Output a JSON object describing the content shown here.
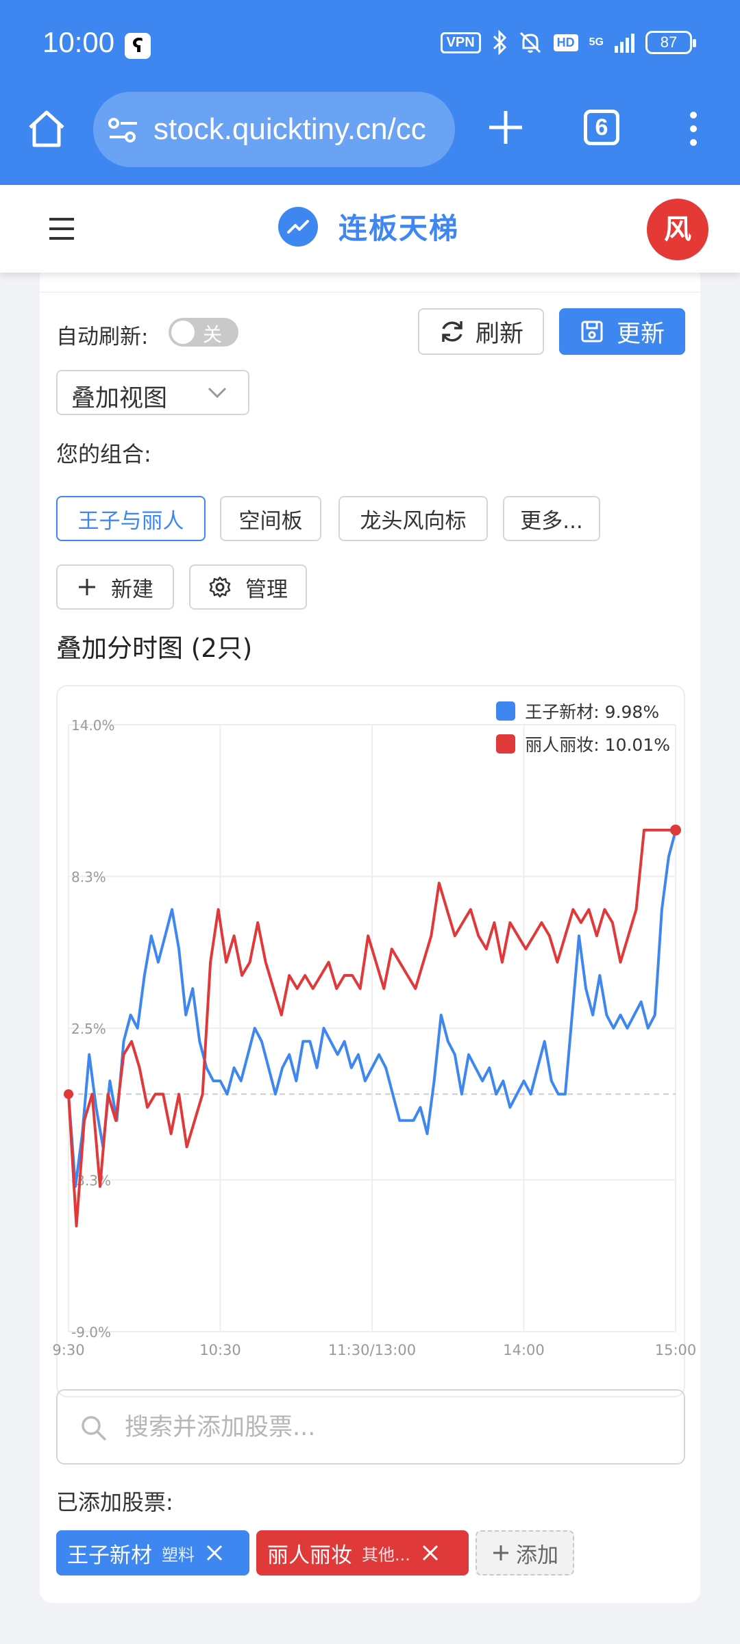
{
  "status_bar": {
    "time": "10:00",
    "app_badge": "ʕ",
    "vpn": "VPN",
    "hd": "HD",
    "network": "5G",
    "battery": "87"
  },
  "browser": {
    "url": "stock.quicktiny.cn/cc",
    "tab_count": "6"
  },
  "header": {
    "title": "连板天梯",
    "avatar_text": "风"
  },
  "controls": {
    "auto_refresh_label": "自动刷新:",
    "auto_refresh_state": "关",
    "refresh_label": "刷新",
    "update_label": "更新",
    "view_select": "叠加视图"
  },
  "portfolio": {
    "label": "您的组合:",
    "chips": [
      "王子与丽人",
      "空间板",
      "龙头风向标",
      "更多..."
    ],
    "active_index": 0,
    "new_label": "新建",
    "manage_label": "管理"
  },
  "chart_data": {
    "type": "line",
    "title": "叠加分时图 (2只)",
    "y_ticks": [
      "14.0%",
      "8.3%",
      "2.5%",
      "-3.3%",
      "-9.0%"
    ],
    "ylim": [
      -9.0,
      14.0
    ],
    "x_ticks": [
      "9:30",
      "10:30",
      "11:30/13:00",
      "14:00",
      "15:00"
    ],
    "grid": true,
    "legend_position": "top-right",
    "series": [
      {
        "name": "王子新材: 9.98%",
        "color": "#3f87f0",
        "values": [
          0.0,
          -3.5,
          -1.5,
          1.5,
          -0.5,
          -2.0,
          0.5,
          -1.0,
          2.0,
          3.0,
          2.5,
          4.5,
          6.0,
          5.0,
          6.0,
          7.0,
          5.5,
          3.0,
          4.0,
          2.0,
          1.0,
          0.5,
          0.5,
          0.0,
          1.0,
          0.5,
          1.5,
          2.5,
          2.0,
          1.0,
          0.0,
          1.0,
          1.5,
          0.5,
          2.0,
          2.0,
          1.0,
          2.5,
          2.0,
          1.5,
          2.0,
          1.0,
          1.5,
          0.5,
          1.0,
          1.5,
          1.0,
          0.0,
          -1.0,
          -1.0,
          -1.0,
          -0.5,
          -1.5,
          0.5,
          3.0,
          2.0,
          1.5,
          0.0,
          1.5,
          1.0,
          0.5,
          1.0,
          0.0,
          0.5,
          -0.5,
          0.0,
          0.5,
          0.0,
          1.0,
          2.0,
          0.5,
          0.0,
          0.0,
          3.0,
          6.0,
          4.0,
          3.0,
          4.5,
          3.0,
          2.5,
          3.0,
          2.5,
          3.0,
          3.5,
          2.5,
          3.0,
          7.0,
          9.0,
          9.98
        ]
      },
      {
        "name": "丽人丽妆: 10.01%",
        "color": "#e0393a",
        "values": [
          0.0,
          -5.0,
          -1.0,
          0.0,
          -3.5,
          0.0,
          -1.0,
          1.5,
          2.0,
          1.0,
          -0.5,
          0.0,
          0.0,
          -1.5,
          0.0,
          -2.0,
          -1.0,
          0.0,
          5.0,
          7.0,
          5.0,
          6.0,
          4.5,
          5.0,
          6.5,
          5.0,
          4.0,
          3.0,
          4.5,
          4.0,
          4.5,
          4.0,
          4.5,
          5.0,
          4.0,
          4.5,
          4.5,
          4.0,
          6.0,
          5.0,
          4.0,
          5.5,
          5.0,
          4.5,
          4.0,
          5.0,
          6.0,
          8.0,
          7.0,
          6.0,
          6.5,
          7.0,
          6.0,
          5.5,
          6.5,
          5.0,
          6.5,
          6.0,
          5.5,
          6.0,
          6.5,
          6.0,
          5.0,
          6.0,
          7.0,
          6.5,
          7.0,
          6.0,
          7.0,
          6.5,
          5.0,
          6.0,
          7.0,
          10.01,
          10.01,
          10.01,
          10.01,
          10.01
        ]
      }
    ]
  },
  "search": {
    "placeholder": "搜索并添加股票..."
  },
  "added": {
    "label": "已添加股票:",
    "stocks": [
      {
        "name": "王子新材",
        "sector": "塑料",
        "color": "#3f87f0"
      },
      {
        "name": "丽人丽妆",
        "sector": "其他...",
        "color": "#e0393a"
      }
    ],
    "add_label": "添加"
  }
}
